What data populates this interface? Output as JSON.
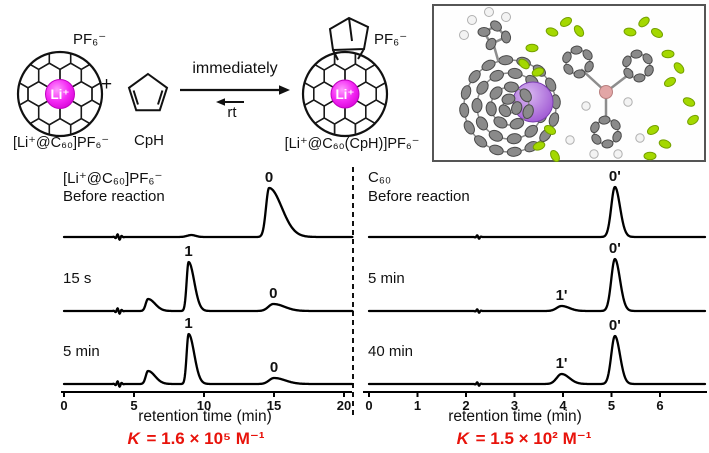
{
  "scheme": {
    "reactant_counterion": "PF₆⁻",
    "reactant_label": "[Li⁺@C₆₀]PF₆⁻",
    "li_label": "Li⁺",
    "plus_sign": "+",
    "cp_label": "CpH",
    "forward_condition": "immediately",
    "reverse_condition": "rt",
    "product_counterion": "PF₆⁻",
    "product_label": "[Li⁺@C₆₀(CpH)]PF₆⁻"
  },
  "chart_data": [
    {
      "type": "line",
      "title": "[Li⁺@C₆₀]PF₆⁻",
      "xlabel": "retention time (min)",
      "xlim": [
        0,
        20.6
      ],
      "xticks": [
        0,
        5,
        10,
        15,
        20
      ],
      "equilibrium_constant": {
        "symbol": "K",
        "value": " = 1.6 × 10⁵ M⁻¹"
      },
      "traces": [
        {
          "label_lines": [
            "[Li⁺@C₆₀]PF₆⁻",
            "Before reaction"
          ],
          "baseline_wiggle_x": 3.9,
          "peaks": [
            {
              "x": 9.1,
              "height": 2,
              "wl": 0.3,
              "wr": 0.3
            },
            {
              "x": 14.65,
              "height": 49,
              "wl": 0.22,
              "wr": 0.9,
              "label": "0"
            }
          ]
        },
        {
          "label_lines": [
            "15 s"
          ],
          "baseline_wiggle_x": 3.9,
          "peaks": [
            {
              "x": 6.0,
              "height": 12,
              "wl": 0.16,
              "wr": 0.5
            },
            {
              "x": 8.9,
              "height": 49,
              "wl": 0.14,
              "wr": 0.4,
              "label": "1"
            },
            {
              "x": 14.95,
              "height": 7,
              "wl": 0.35,
              "wr": 0.8,
              "label": "0"
            }
          ]
        },
        {
          "label_lines": [
            "5 min"
          ],
          "baseline_wiggle_x": 3.9,
          "peaks": [
            {
              "x": 6.0,
              "height": 13,
              "wl": 0.16,
              "wr": 0.5
            },
            {
              "x": 8.9,
              "height": 50,
              "wl": 0.14,
              "wr": 0.4,
              "label": "1"
            },
            {
              "x": 15.0,
              "height": 6,
              "wl": 0.35,
              "wr": 0.8,
              "label": "0"
            }
          ]
        }
      ]
    },
    {
      "type": "line",
      "title": "C₆₀",
      "xlabel": "retention time (min)",
      "xlim": [
        0,
        6.93
      ],
      "xticks": [
        0,
        1,
        2,
        3,
        4,
        5,
        6
      ],
      "equilibrium_constant": {
        "symbol": "K",
        "value": " = 1.5 × 10² M⁻¹"
      },
      "traces": [
        {
          "label_lines": [
            "C₆₀",
            "Before reaction"
          ],
          "baseline_wiggle_x": 2.25,
          "peaks": [
            {
              "x": 5.07,
              "height": 50,
              "wl": 0.075,
              "wr": 0.105,
              "label": "0'"
            }
          ]
        },
        {
          "label_lines": [
            "5 min"
          ],
          "baseline_wiggle_x": 2.25,
          "peaks": [
            {
              "x": 3.97,
              "height": 5,
              "wl": 0.1,
              "wr": 0.16,
              "label": "1'"
            },
            {
              "x": 5.07,
              "height": 52,
              "wl": 0.075,
              "wr": 0.105,
              "label": "0'"
            }
          ]
        },
        {
          "label_lines": [
            "40 min"
          ],
          "baseline_wiggle_x": 2.25,
          "peaks": [
            {
              "x": 3.97,
              "height": 10,
              "wl": 0.1,
              "wr": 0.16,
              "label": "1'"
            },
            {
              "x": 5.07,
              "height": 48,
              "wl": 0.075,
              "wr": 0.105,
              "label": "0'"
            }
          ]
        }
      ]
    }
  ],
  "colors": {
    "li_magenta": "#ee18ee",
    "k_red": "#e8130b",
    "trace_black": "#000000",
    "lithium_purple": "#a55fd5",
    "fluorine_green": "#a4d800",
    "boron_pink": "#e2a6a6",
    "carbon_gray": "#8a8a8a",
    "hydrogen_white": "#f3f3f3"
  }
}
